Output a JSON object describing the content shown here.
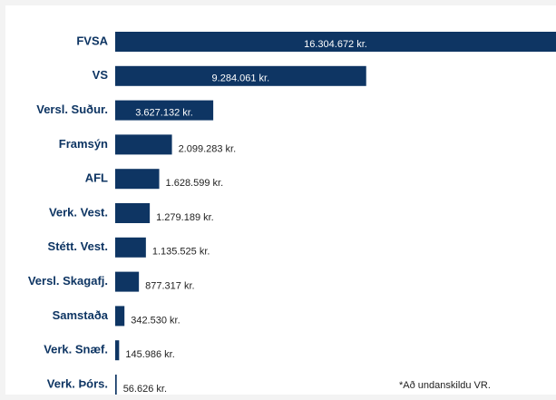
{
  "chart_data": {
    "type": "bar",
    "orientation": "horizontal",
    "color": "#0e3563",
    "categories": [
      "FVSA",
      "VS",
      "Versl. Suður.",
      "Framsýn",
      "AFL",
      "Verk. Vest.",
      "Stétt. Vest.",
      "Versl. Skagafj.",
      "Samstaða",
      "Verk. Snæf.",
      "Verk. Þórs."
    ],
    "values": [
      16304672,
      9284061,
      3627132,
      2099283,
      1628599,
      1279189,
      1135525,
      877317,
      342530,
      145986,
      56626
    ],
    "value_labels": [
      "16.304.672 kr.",
      "9.284.061 kr.",
      "3.627.132 kr.",
      "2.099.283 kr.",
      "1.628.599 kr.",
      "1.279.189 kr.",
      "1.135.525 kr.",
      "877.317 kr.",
      "342.530 kr.",
      "145.986 kr.",
      "56.626 kr."
    ],
    "note": "*Að undanskildu VR."
  }
}
